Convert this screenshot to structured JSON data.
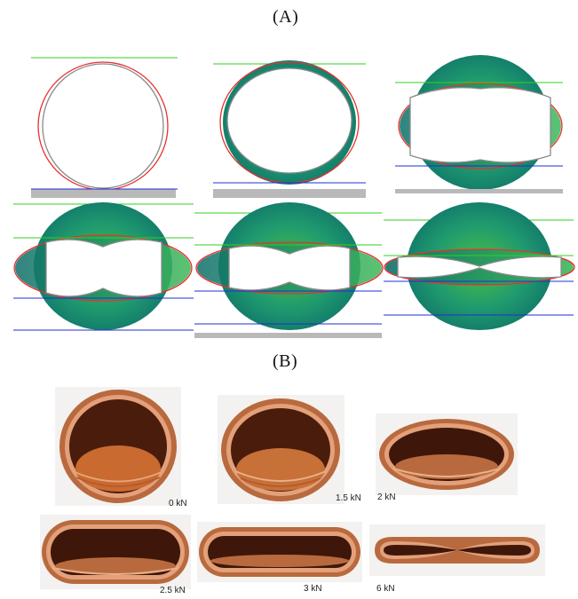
{
  "panels": {
    "a_label": "(A)",
    "b_label": "(B)"
  },
  "colors": {
    "outer_outline": "#e8302e",
    "inner_outline": "#8a8a8a",
    "top_plate_line": "#2fd21f",
    "bottom_plate_line": "#1f2fd6",
    "ground_plate": "#b9b9b9",
    "contact_fill_light": "#4cbf44",
    "contact_fill_dark": "#0e6f6a",
    "copper_light": "#e9a27a",
    "copper_dark": "#8a4422",
    "copper_interior": "#c96a30"
  },
  "photos": [
    {
      "load": "0 kN"
    },
    {
      "load": "1.5 kN"
    },
    {
      "load": "2 kN"
    },
    {
      "load": "2.5 kN"
    },
    {
      "load": "3 kN"
    },
    {
      "load": "6 kN"
    }
  ]
}
